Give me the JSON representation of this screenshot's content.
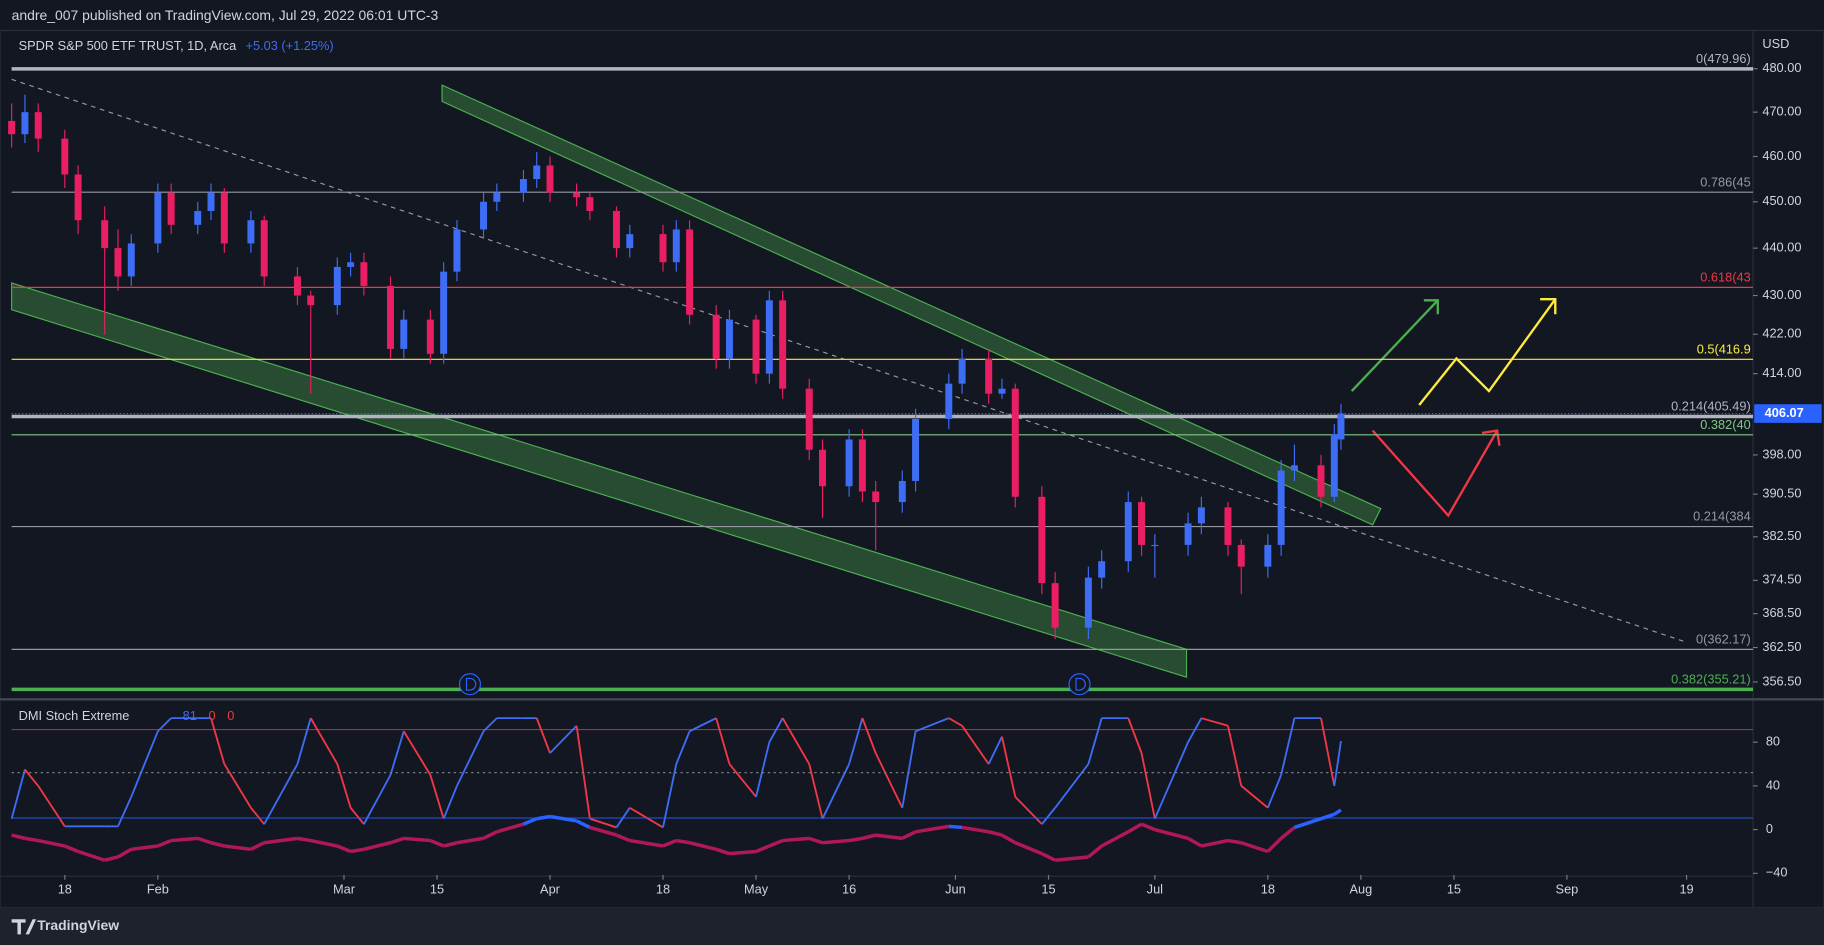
{
  "header": {
    "author_line": "andre_007 published on TradingView.com, Jul 29, 2022 06:01 UTC-3"
  },
  "chart": {
    "type": "candlestick",
    "symbol": "SPDR S&P 500 ETF TRUST, 1D, Arca",
    "change": "+5.03 (+1.25%)",
    "currency": "USD",
    "last_price": 406.07,
    "log_scale": true,
    "up_color": "#3d6cf5",
    "down_color": "#e91e63",
    "ylim": [
      353.7,
      489
    ],
    "yticks": [
      {
        "value": 480,
        "label": "480.00"
      },
      {
        "value": 470,
        "label": "470.00"
      },
      {
        "value": 460,
        "label": "460.00"
      },
      {
        "value": 450,
        "label": "450.00"
      },
      {
        "value": 440,
        "label": "440.00"
      },
      {
        "value": 430,
        "label": "430.00"
      },
      {
        "value": 422,
        "label": "422.00"
      },
      {
        "value": 414,
        "label": "414.00"
      },
      {
        "value": 398,
        "label": "398.00"
      },
      {
        "value": 390.5,
        "label": "390.50"
      },
      {
        "value": 382.5,
        "label": "382.50"
      },
      {
        "value": 374.5,
        "label": "374.50"
      },
      {
        "value": 368.5,
        "label": "368.50"
      },
      {
        "value": 362.5,
        "label": "362.50"
      },
      {
        "value": 356.5,
        "label": "356.50"
      }
    ],
    "xlim": [
      "2022-01-10",
      "2022-09-29"
    ],
    "xticks": [
      {
        "value": "2022-01-18",
        "label": "18"
      },
      {
        "value": "2022-02-01",
        "label": "Feb"
      },
      {
        "value": "2022-03-01",
        "label": "Mar"
      },
      {
        "value": "2022-03-15",
        "label": "15"
      },
      {
        "value": "2022-04-01",
        "label": "Apr"
      },
      {
        "value": "2022-04-18",
        "label": "18"
      },
      {
        "value": "2022-05-02",
        "label": "May"
      },
      {
        "value": "2022-05-16",
        "label": "16"
      },
      {
        "value": "2022-06-01",
        "label": "Jun"
      },
      {
        "value": "2022-06-15",
        "label": "15"
      },
      {
        "value": "2022-07-01",
        "label": "Jul"
      },
      {
        "value": "2022-07-18",
        "label": "18"
      },
      {
        "value": "2022-08-01",
        "label": "Aug"
      },
      {
        "value": "2022-08-15",
        "label": "15"
      },
      {
        "value": "2022-09-01",
        "label": "Sep"
      },
      {
        "value": "2022-09-19",
        "label": "19"
      }
    ],
    "fib_levels": [
      {
        "value": 479.96,
        "label": "0(479.96)",
        "color": "#b2b5be",
        "width": 3
      },
      {
        "value": 452.1,
        "label": "0.786(45",
        "color": "#9598a1",
        "width": 1
      },
      {
        "value": 431.7,
        "label": "0.618(43",
        "color": "#f23645",
        "width": 1
      },
      {
        "value": 416.9,
        "label": "0.5(416.9",
        "color": "#ffeb3b",
        "width": 1
      },
      {
        "value": 405.49,
        "label": "0.214(405.49)",
        "color": "#b2b5be",
        "width": 3
      },
      {
        "value": 401.9,
        "label": "0.382(40",
        "color": "#81c784",
        "width": 1
      },
      {
        "value": 384.4,
        "label": "0.214(384",
        "color": "#9598a1",
        "width": 1
      },
      {
        "value": 362.17,
        "label": "0(362.17)",
        "color": "#9598a1",
        "width": 1
      },
      {
        "value": 355.21,
        "label": "0.382(355.21)",
        "color": "#4caf50",
        "width": 3
      }
    ],
    "x": [
      "2022-01-10",
      "2022-01-12",
      "2022-01-14",
      "2022-01-18",
      "2022-01-20",
      "2022-01-24",
      "2022-01-26",
      "2022-01-28",
      "2022-02-01",
      "2022-02-03",
      "2022-02-07",
      "2022-02-09",
      "2022-02-11",
      "2022-02-15",
      "2022-02-17",
      "2022-02-22",
      "2022-02-24",
      "2022-02-28",
      "2022-03-02",
      "2022-03-04",
      "2022-03-08",
      "2022-03-10",
      "2022-03-14",
      "2022-03-16",
      "2022-03-18",
      "2022-03-22",
      "2022-03-24",
      "2022-03-28",
      "2022-03-30",
      "2022-04-01",
      "2022-04-05",
      "2022-04-07",
      "2022-04-11",
      "2022-04-13",
      "2022-04-18",
      "2022-04-20",
      "2022-04-22",
      "2022-04-26",
      "2022-04-28",
      "2022-05-02",
      "2022-05-04",
      "2022-05-06",
      "2022-05-10",
      "2022-05-12",
      "2022-05-16",
      "2022-05-18",
      "2022-05-20",
      "2022-05-24",
      "2022-05-26",
      "2022-05-31",
      "2022-06-02",
      "2022-06-06",
      "2022-06-08",
      "2022-06-10",
      "2022-06-14",
      "2022-06-16",
      "2022-06-21",
      "2022-06-23",
      "2022-06-27",
      "2022-06-29",
      "2022-07-01",
      "2022-07-06",
      "2022-07-08",
      "2022-07-12",
      "2022-07-14",
      "2022-07-18",
      "2022-07-20",
      "2022-07-22",
      "2022-07-26",
      "2022-07-28",
      "2022-07-29"
    ],
    "ohlc": [
      [
        468,
        472,
        462,
        465
      ],
      [
        465,
        474,
        463,
        470
      ],
      [
        470,
        472,
        461,
        464
      ],
      [
        464,
        466,
        453,
        456
      ],
      [
        456,
        458,
        443,
        446
      ],
      [
        446,
        449,
        422,
        440
      ],
      [
        440,
        444,
        431,
        434
      ],
      [
        434,
        443,
        432,
        441
      ],
      [
        441,
        454,
        439,
        452
      ],
      [
        452,
        454,
        443,
        445
      ],
      [
        445,
        450,
        443,
        448
      ],
      [
        448,
        454,
        446,
        452
      ],
      [
        452,
        453,
        439,
        441
      ],
      [
        441,
        448,
        439,
        446
      ],
      [
        446,
        447,
        432,
        434
      ],
      [
        434,
        436,
        428,
        430
      ],
      [
        430,
        431,
        410,
        428
      ],
      [
        428,
        438,
        426,
        436
      ],
      [
        436,
        439,
        434,
        437
      ],
      [
        437,
        439,
        430,
        432
      ],
      [
        432,
        434,
        417,
        419
      ],
      [
        419,
        427,
        417,
        425
      ],
      [
        425,
        427,
        416,
        418
      ],
      [
        418,
        437,
        416,
        435
      ],
      [
        435,
        446,
        433,
        444
      ],
      [
        444,
        452,
        442,
        450
      ],
      [
        450,
        454,
        448,
        452
      ],
      [
        452,
        457,
        450,
        455
      ],
      [
        455,
        461,
        453,
        458
      ],
      [
        458,
        460,
        450,
        452
      ],
      [
        452,
        454,
        449,
        451
      ],
      [
        451,
        452,
        446,
        448
      ],
      [
        448,
        449,
        438,
        440
      ],
      [
        440,
        445,
        438,
        443
      ],
      [
        443,
        445,
        435,
        437
      ],
      [
        437,
        446,
        435,
        444
      ],
      [
        444,
        446,
        424,
        426
      ],
      [
        426,
        428,
        415,
        417
      ],
      [
        417,
        427,
        415,
        425
      ],
      [
        425,
        426,
        412,
        414
      ],
      [
        414,
        431,
        412,
        429
      ],
      [
        429,
        431,
        409,
        411
      ],
      [
        411,
        413,
        397,
        399
      ],
      [
        399,
        401,
        386,
        392
      ],
      [
        392,
        403,
        390,
        401
      ],
      [
        401,
        403,
        389,
        391
      ],
      [
        391,
        393,
        380,
        389
      ],
      [
        389,
        395,
        387,
        393
      ],
      [
        393,
        407,
        391,
        405
      ],
      [
        405,
        414,
        403,
        412
      ],
      [
        412,
        419,
        410,
        417
      ],
      [
        417,
        419,
        408,
        410
      ],
      [
        410,
        413,
        409,
        411
      ],
      [
        411,
        412,
        388,
        390
      ],
      [
        390,
        392,
        372,
        374
      ],
      [
        374,
        376,
        364,
        366
      ],
      [
        366,
        377,
        364,
        375
      ],
      [
        375,
        380,
        373,
        378
      ],
      [
        378,
        391,
        376,
        389
      ],
      [
        389,
        390,
        379,
        381
      ],
      [
        381,
        383,
        375,
        381
      ],
      [
        381,
        387,
        379,
        385
      ],
      [
        385,
        390,
        383,
        388
      ],
      [
        388,
        389,
        379,
        381
      ],
      [
        381,
        382,
        372,
        377
      ],
      [
        377,
        383,
        375,
        381
      ],
      [
        381,
        397,
        379,
        395
      ],
      [
        395,
        400,
        393,
        396
      ],
      [
        396,
        398,
        388,
        390
      ],
      [
        390,
        404,
        389,
        402
      ],
      [
        401,
        408,
        399,
        406.07
      ]
    ]
  },
  "indicator": {
    "name": "DMI Stoch Extreme",
    "readouts": [
      {
        "text": "81",
        "color": "#3d6cf5"
      },
      {
        "text": "0",
        "color": "#f23645"
      },
      {
        "text": "0",
        "color": "#f23645"
      }
    ],
    "ylim": [
      -41.5,
      116
    ],
    "yticks": [
      80,
      40,
      0,
      {
        "value": -40,
        "label": "−40"
      }
    ],
    "rise_color": "#3d6cf5",
    "fall_color": "#f23645",
    "dmi_color": "#b0185a",
    "stoch": [
      10,
      55,
      40,
      3,
      3,
      3,
      3,
      30,
      90,
      102,
      102,
      102,
      60,
      20,
      5,
      60,
      102,
      60,
      20,
      5,
      50,
      90,
      50,
      10,
      40,
      90,
      102,
      102,
      102,
      70,
      95,
      10,
      2,
      20,
      2,
      60,
      90,
      102,
      60,
      30,
      80,
      102,
      60,
      10,
      60,
      102,
      70,
      20,
      90,
      102,
      95,
      60,
      85,
      30,
      5,
      20,
      60,
      102,
      102,
      70,
      10,
      80,
      102,
      95,
      40,
      20,
      50,
      102,
      102,
      40,
      81
    ],
    "dmi": [
      -5,
      -8,
      -10,
      -15,
      -20,
      -28,
      -25,
      -18,
      -15,
      -10,
      -8,
      -12,
      -15,
      -18,
      -12,
      -8,
      -10,
      -15,
      -20,
      -18,
      -12,
      -8,
      -10,
      -15,
      -12,
      -8,
      -2,
      5,
      10,
      12,
      8,
      2,
      -5,
      -10,
      -15,
      -10,
      -12,
      -18,
      -22,
      -20,
      -15,
      -10,
      -8,
      -12,
      -10,
      -8,
      -5,
      -8,
      -2,
      3,
      2,
      -2,
      -5,
      -12,
      -22,
      -28,
      -25,
      -15,
      -2,
      5,
      0,
      -8,
      -15,
      -10,
      -12,
      -20,
      -8,
      2,
      10,
      14,
      18
    ]
  },
  "footer": {
    "brand": "TradingView"
  }
}
